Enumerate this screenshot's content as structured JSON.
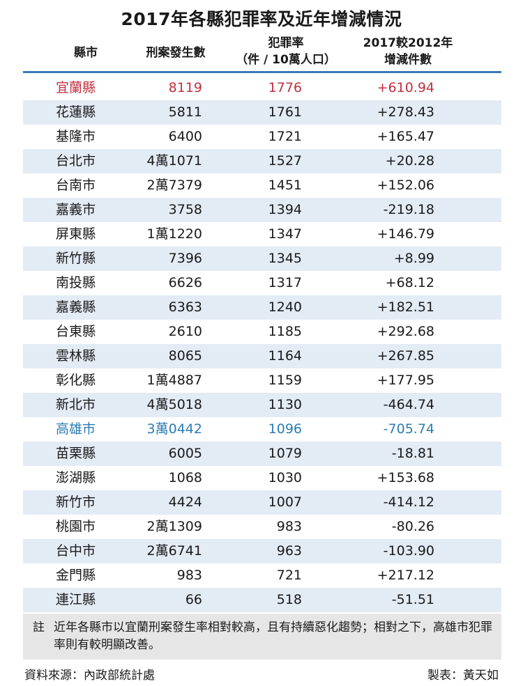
{
  "title": "2017年各縣犯罪率及近年增減情況",
  "headers": {
    "county": "縣市",
    "cases": "刑案發生數",
    "rate_line1": "犯罪率",
    "rate_line2": "（件 / 10萬人口）",
    "change_line1": "2017較2012年",
    "change_line2": "增減件數"
  },
  "colors": {
    "header_line": "#3a79b5",
    "row_alt": "#e3ebf5",
    "highlight_red": "#c1303f",
    "highlight_blue": "#2b7cb3",
    "note_bg": "#e6e6e6"
  },
  "rows": [
    {
      "county": "宜蘭縣",
      "cases": "8119",
      "rate": "1776",
      "change": "+610.94",
      "highlight": "red"
    },
    {
      "county": "花蓮縣",
      "cases": "5811",
      "rate": "1761",
      "change": "+278.43"
    },
    {
      "county": "基隆市",
      "cases": "6400",
      "rate": "1721",
      "change": "+165.47"
    },
    {
      "county": "台北市",
      "cases": "4萬1071",
      "rate": "1527",
      "change": "+20.28"
    },
    {
      "county": "台南市",
      "cases": "2萬7379",
      "rate": "1451",
      "change": "+152.06"
    },
    {
      "county": "嘉義市",
      "cases": "3758",
      "rate": "1394",
      "change": "-219.18"
    },
    {
      "county": "屏東縣",
      "cases": "1萬1220",
      "rate": "1347",
      "change": "+146.79"
    },
    {
      "county": "新竹縣",
      "cases": "7396",
      "rate": "1345",
      "change": "+8.99"
    },
    {
      "county": "南投縣",
      "cases": "6626",
      "rate": "1317",
      "change": "+68.12"
    },
    {
      "county": "嘉義縣",
      "cases": "6363",
      "rate": "1240",
      "change": "+182.51"
    },
    {
      "county": "台東縣",
      "cases": "2610",
      "rate": "1185",
      "change": "+292.68"
    },
    {
      "county": "雲林縣",
      "cases": "8065",
      "rate": "1164",
      "change": "+267.85"
    },
    {
      "county": "彰化縣",
      "cases": "1萬4887",
      "rate": "1159",
      "change": "+177.95"
    },
    {
      "county": "新北市",
      "cases": "4萬5018",
      "rate": "1130",
      "change": "-464.74"
    },
    {
      "county": "高雄市",
      "cases": "3萬0442",
      "rate": "1096",
      "change": "-705.74",
      "highlight": "blue"
    },
    {
      "county": "苗栗縣",
      "cases": "6005",
      "rate": "1079",
      "change": "-18.81"
    },
    {
      "county": "澎湖縣",
      "cases": "1068",
      "rate": "1030",
      "change": "+153.68"
    },
    {
      "county": "新竹市",
      "cases": "4424",
      "rate": "1007",
      "change": "-414.12"
    },
    {
      "county": "桃園市",
      "cases": "2萬1309",
      "rate": "983",
      "change": "-80.26"
    },
    {
      "county": "台中市",
      "cases": "2萬6741",
      "rate": "963",
      "change": "-103.90"
    },
    {
      "county": "金門縣",
      "cases": "983",
      "rate": "721",
      "change": "+217.12"
    },
    {
      "county": "連江縣",
      "cases": "66",
      "rate": "518",
      "change": "-51.51"
    }
  ],
  "note": {
    "mark": "註",
    "text": "近年各縣市以宜蘭刑案發生率相對較高，且有持續惡化趨勢；相對之下，高雄市犯罪率則有較明顯改善。"
  },
  "footer": {
    "source": "資料來源：內政部統計處",
    "maker": "製表：黃天如"
  }
}
